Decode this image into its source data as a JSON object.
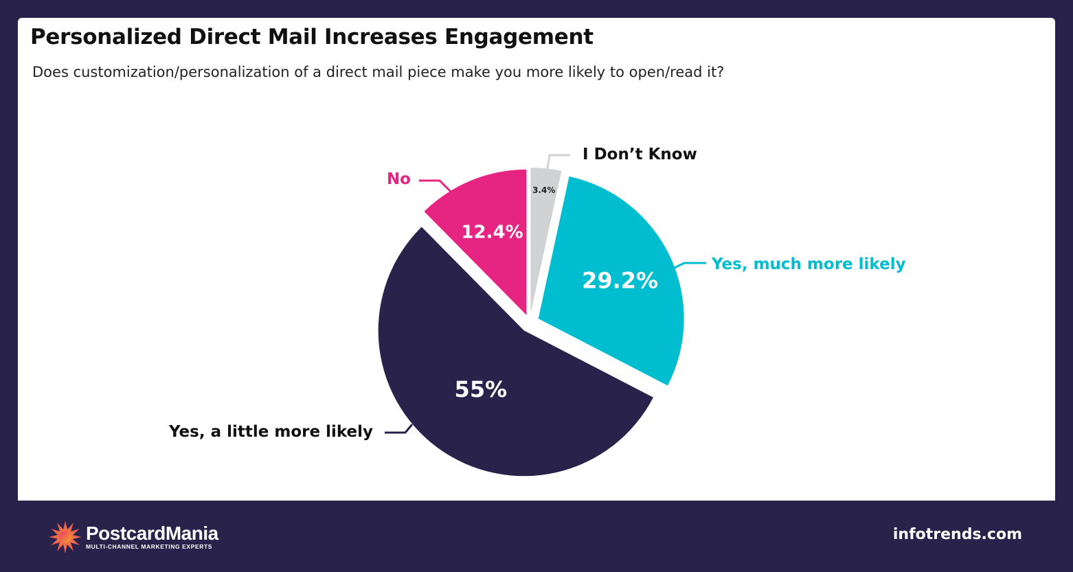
{
  "chart_data": {
    "type": "pie",
    "title": "Personalized Direct Mail Increases Engagement",
    "subtitle": "Does customization/personalization of a direct mail piece make you more likely to open/read it?",
    "slices": [
      {
        "label": "I Don’t Know",
        "value": 3.4,
        "value_label": "3.4%",
        "color": "#d1d2d4",
        "label_color": "#111111",
        "value_color": "#222222"
      },
      {
        "label": "Yes, much more likely",
        "value": 29.2,
        "value_label": "29.2%",
        "color": "#00bed0",
        "label_color": "#00bed0",
        "value_color": "#ffffff"
      },
      {
        "label": "Yes, a little more likely",
        "value": 55,
        "value_label": "55%",
        "color": "#29234b",
        "label_color": "#111111",
        "value_color": "#ffffff"
      },
      {
        "label": "No",
        "value": 12.4,
        "value_label": "12.4%",
        "color": "#e52581",
        "label_color": "#e52581",
        "value_color": "#ffffff"
      }
    ],
    "exploded": true,
    "legend": "none (leader-line labels)"
  },
  "footer": {
    "brand_name": "PostcardMania",
    "brand_tagline": "MULTI-CHANNEL MARKETING EXPERTS",
    "source": "infotrends.com"
  },
  "colors": {
    "background": "#29234b",
    "card": "#ffffff"
  }
}
